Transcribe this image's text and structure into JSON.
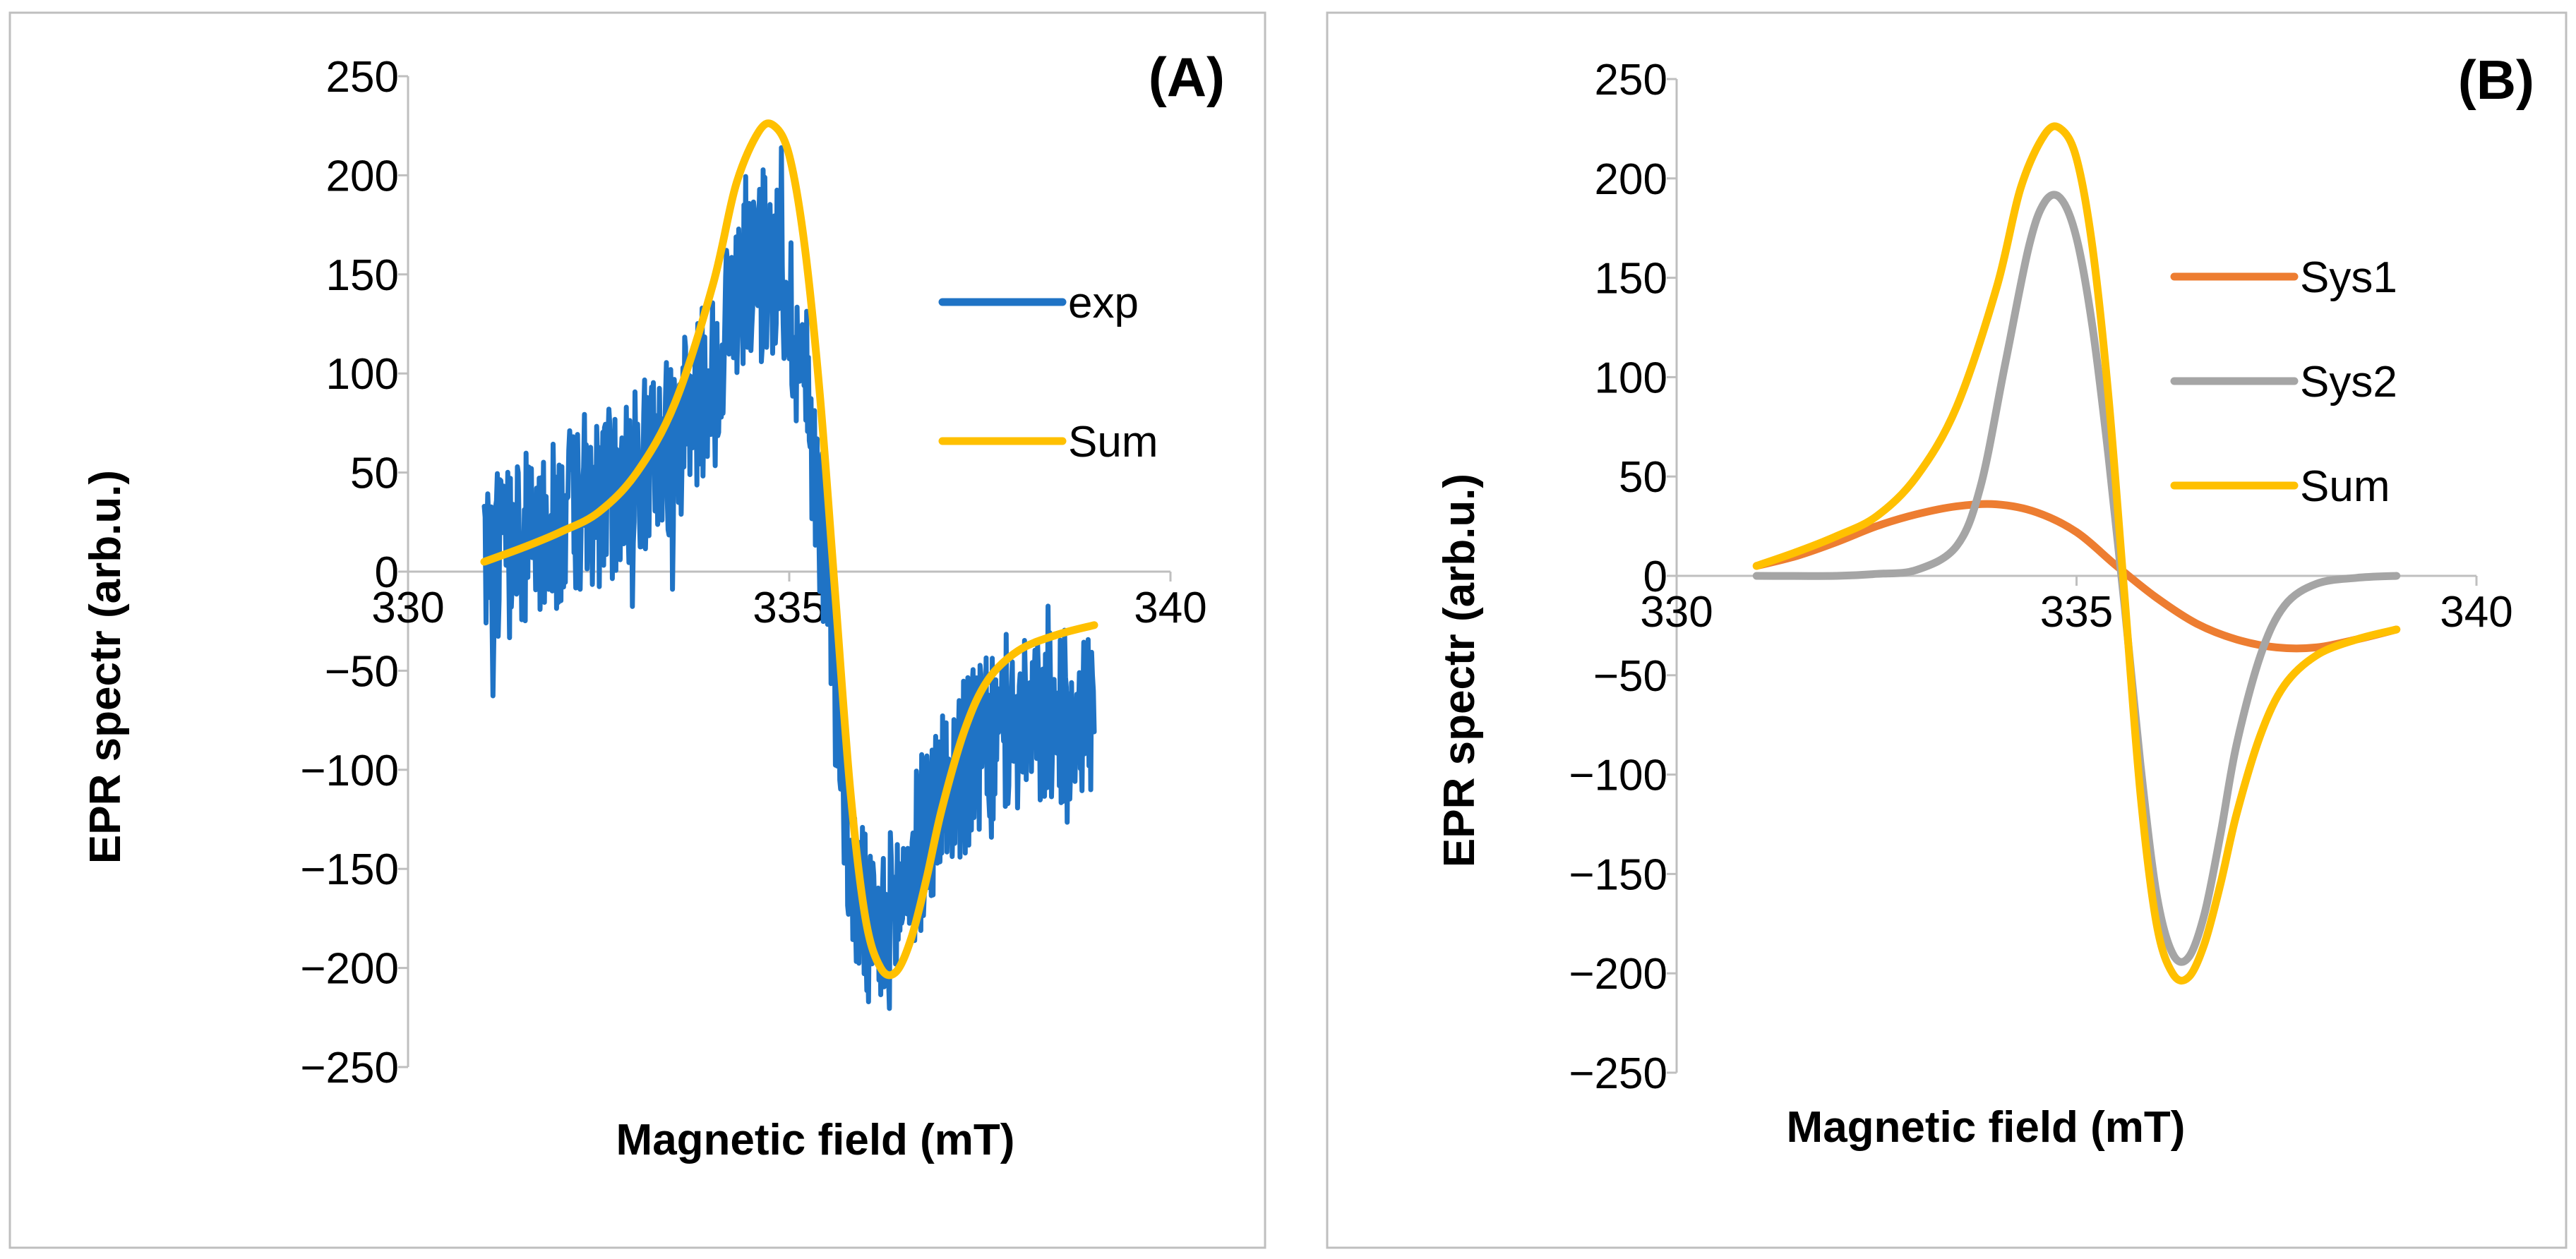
{
  "chart_data": [
    {
      "type": "line",
      "panel_label": "(A)",
      "xlabel": "Magnetic field (mT)",
      "ylabel": "EPR spectr (arb.u.)",
      "xlim": [
        330,
        340
      ],
      "ylim": [
        -250,
        250
      ],
      "x_ticks": [
        "330",
        "335",
        "340"
      ],
      "y_ticks": [
        "250",
        "200",
        "150",
        "100",
        "50",
        "0",
        "−50",
        "−100",
        "−150",
        "−200",
        "−250"
      ],
      "legend_position": "right",
      "series": [
        {
          "name": "exp",
          "color": "#1f73c5",
          "noisy": true,
          "x": [
            331.0,
            331.5,
            332.0,
            332.5,
            333.0,
            333.5,
            334.0,
            334.3,
            334.6,
            334.9,
            335.2,
            335.5,
            335.8,
            336.1,
            336.4,
            336.7,
            337.0,
            337.5,
            338.0,
            338.5,
            339.0
          ],
          "y": [
            5,
            15,
            25,
            35,
            50,
            65,
            100,
            140,
            160,
            150,
            100,
            0,
            -150,
            -190,
            -170,
            -140,
            -110,
            -90,
            -80,
            -75,
            -70
          ]
        },
        {
          "name": "Sum",
          "color": "#ffc000",
          "x": [
            331.0,
            331.5,
            332.0,
            332.5,
            333.0,
            333.5,
            334.0,
            334.3,
            334.6,
            334.8,
            335.0,
            335.2,
            335.4,
            335.6,
            335.8,
            336.0,
            336.2,
            336.4,
            336.6,
            336.8,
            337.0,
            337.3,
            337.6,
            338.0,
            338.5,
            339.0
          ],
          "y": [
            5,
            12,
            20,
            30,
            50,
            85,
            145,
            195,
            222,
            225,
            210,
            165,
            90,
            -10,
            -110,
            -175,
            -200,
            -202,
            -185,
            -155,
            -120,
            -80,
            -55,
            -40,
            -32,
            -27
          ]
        }
      ]
    },
    {
      "type": "line",
      "panel_label": "(B)",
      "xlabel": "Magnetic field (mT)",
      "ylabel": "EPR spectr (arb.u.)",
      "xlim": [
        330,
        340
      ],
      "ylim": [
        -250,
        250
      ],
      "x_ticks": [
        "330",
        "335",
        "340"
      ],
      "y_ticks": [
        "250",
        "200",
        "150",
        "100",
        "50",
        "0",
        "−50",
        "−100",
        "−150",
        "−200",
        "−250"
      ],
      "legend_position": "right",
      "series": [
        {
          "name": "Sys1",
          "color": "#ed7d31",
          "x": [
            331.0,
            331.5,
            332.0,
            332.5,
            333.0,
            333.5,
            334.0,
            334.5,
            335.0,
            335.5,
            336.0,
            336.5,
            337.0,
            337.5,
            338.0,
            338.5,
            339.0
          ],
          "y": [
            5,
            10,
            17,
            25,
            31,
            35,
            36,
            32,
            22,
            5,
            -11,
            -24,
            -32,
            -36,
            -36,
            -32,
            -27
          ]
        },
        {
          "name": "Sys2",
          "color": "#a5a5a5",
          "x": [
            331.0,
            332.0,
            332.5,
            333.0,
            333.5,
            333.8,
            334.1,
            334.4,
            334.6,
            334.8,
            335.0,
            335.2,
            335.4,
            335.6,
            335.8,
            336.0,
            336.2,
            336.4,
            336.6,
            336.8,
            337.0,
            337.3,
            337.6,
            338.0,
            338.5,
            339.0
          ],
          "y": [
            0,
            0,
            1,
            3,
            15,
            45,
            105,
            165,
            188,
            190,
            170,
            125,
            60,
            -15,
            -95,
            -160,
            -190,
            -192,
            -170,
            -130,
            -85,
            -40,
            -15,
            -4,
            -1,
            0
          ]
        },
        {
          "name": "Sum",
          "color": "#ffc000",
          "x": [
            331.0,
            331.5,
            332.0,
            332.5,
            333.0,
            333.5,
            334.0,
            334.3,
            334.6,
            334.8,
            335.0,
            335.2,
            335.4,
            335.6,
            335.8,
            336.0,
            336.2,
            336.4,
            336.6,
            336.8,
            337.0,
            337.3,
            337.6,
            338.0,
            338.5,
            339.0
          ],
          "y": [
            5,
            12,
            20,
            30,
            50,
            85,
            145,
            195,
            222,
            225,
            210,
            165,
            90,
            -10,
            -110,
            -175,
            -200,
            -202,
            -185,
            -155,
            -120,
            -80,
            -55,
            -40,
            -32,
            -27
          ]
        }
      ]
    }
  ]
}
